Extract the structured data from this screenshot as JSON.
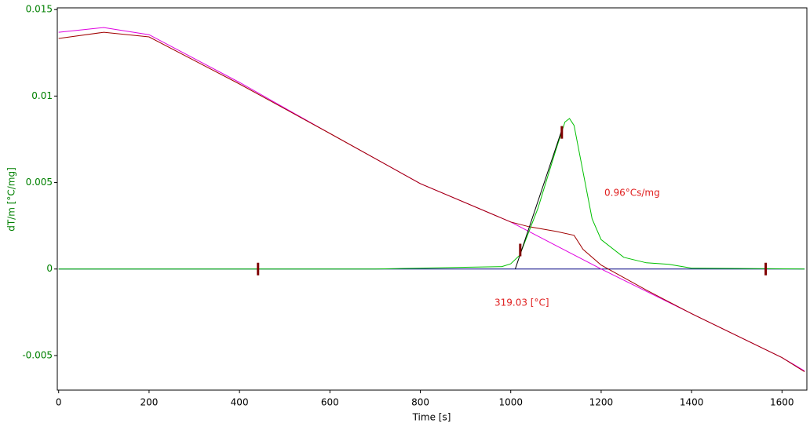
{
  "chart_data": {
    "type": "line",
    "x_label": "Time [s]",
    "y_label": "dT/m  [°C/mg]",
    "xlim": [
      -3,
      1655
    ],
    "ylim": [
      -0.007,
      0.0151
    ],
    "xticks": [
      0,
      200,
      400,
      600,
      800,
      1000,
      1200,
      1400,
      1600
    ],
    "yticks": [
      -0.005,
      0,
      0.005,
      0.01,
      0.015
    ],
    "axis_color": "#008000",
    "series": [
      {
        "color": "#000080",
        "x": [
          0,
          1650
        ],
        "values": [
          0,
          0
        ]
      },
      {
        "color": "#e000e0",
        "x": [
          0,
          100,
          200,
          400,
          600,
          800,
          1000,
          1100,
          1200,
          1400,
          1600,
          1650
        ],
        "values": [
          0.01369,
          0.01396,
          0.01355,
          0.01079,
          0.00784,
          0.00494,
          0.00272,
          0.00136,
          0,
          -0.00258,
          -0.00512,
          -0.00589
        ]
      },
      {
        "color": "#a00000",
        "x": [
          0,
          100,
          200,
          400,
          600,
          800,
          1000,
          1040,
          1100,
          1140,
          1160,
          1200,
          1300,
          1400,
          1600,
          1650
        ],
        "values": [
          0.01333,
          0.01369,
          0.01342,
          0.0107,
          0.00784,
          0.00494,
          0.00272,
          0.00245,
          0.00218,
          0.00195,
          0.00113,
          0.00023,
          -0.00122,
          -0.00258,
          -0.00512,
          -0.00594
        ]
      },
      {
        "color": "#00c000",
        "x": [
          0,
          700,
          800,
          900,
          980,
          1000,
          1020,
          1060,
          1100,
          1120,
          1130,
          1140,
          1160,
          1180,
          1200,
          1250,
          1300,
          1350,
          1400,
          1650
        ],
        "values": [
          0,
          0,
          5e-05,
          0.0001,
          0.00014,
          0.0003,
          0.0008,
          0.0035,
          0.0069,
          0.0085,
          0.0087,
          0.0083,
          0.0056,
          0.0029,
          0.0017,
          0.00068,
          0.00036,
          0.00027,
          5e-05,
          0
        ]
      },
      {
        "color": "#000000",
        "x": [
          1010,
          1115
        ],
        "values": [
          0,
          0.0082
        ]
      }
    ],
    "markers": {
      "color": "#800000",
      "x": [
        441,
        1021,
        1113,
        1564
      ],
      "values": [
        0,
        0.0011,
        0.0079,
        0
      ]
    },
    "annotations": [
      {
        "text": "0.96°Cs/mg",
        "color": "#e02020"
      },
      {
        "text": "319.03 [°C]",
        "color": "#e02020"
      }
    ]
  }
}
